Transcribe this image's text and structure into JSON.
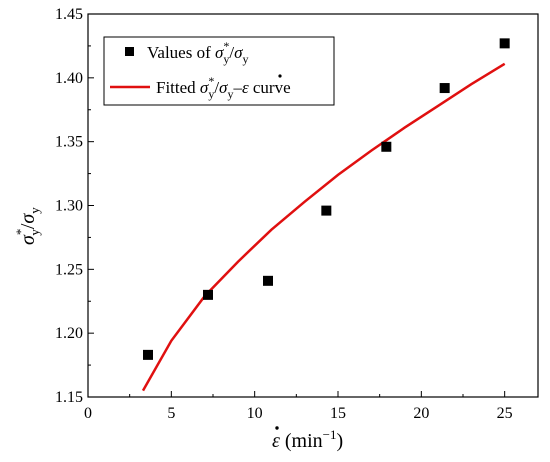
{
  "chart_data": {
    "type": "scatter",
    "xlim": [
      0,
      27
    ],
    "ylim": [
      1.15,
      1.45
    ],
    "x_ticks": [
      0,
      5,
      10,
      15,
      20,
      25
    ],
    "y_ticks": [
      1.15,
      1.2,
      1.25,
      1.3,
      1.35,
      1.4,
      1.45
    ],
    "x_tick_labels": [
      "0",
      "5",
      "10",
      "15",
      "20",
      "25"
    ],
    "y_tick_labels": [
      "1.15",
      "1.20",
      "1.25",
      "1.30",
      "1.35",
      "1.40",
      "1.45"
    ],
    "xlabel": {
      "symbol": "ε",
      "unit_open": " (min",
      "exponent": "−1",
      "unit_close": ")"
    },
    "ylabel": {
      "num": "σ",
      "star": "*",
      "sub": "y",
      "slash": "/",
      "den": "σ",
      "den_sub": "y"
    },
    "grid": false,
    "legend_position": "top-left",
    "series": [
      {
        "kind": "scatter",
        "marker": "square",
        "color": "#000000",
        "legend": {
          "prefix": "Values of ",
          "num": "σ",
          "star": "*",
          "sub": "y",
          "slash": "/",
          "den": "σ",
          "den_sub": "y"
        },
        "x": [
          3.6,
          7.2,
          10.8,
          14.3,
          17.9,
          21.4,
          25.0
        ],
        "y": [
          1.183,
          1.23,
          1.241,
          1.296,
          1.346,
          1.392,
          1.427
        ]
      },
      {
        "kind": "line",
        "color": "#e01010",
        "legend": {
          "prefix": "Fitted ",
          "num": "σ",
          "star": "*",
          "sub": "y",
          "slash": "/",
          "den": "σ",
          "den_sub": "y",
          "dash": "–",
          "rate": "ε",
          "suffix": " curve"
        },
        "x": [
          3.3,
          5,
          7,
          9,
          11,
          13,
          15,
          17,
          19,
          21,
          23,
          25
        ],
        "y": [
          1.155,
          1.194,
          1.229,
          1.256,
          1.281,
          1.303,
          1.324,
          1.343,
          1.361,
          1.378,
          1.395,
          1.411
        ]
      }
    ]
  }
}
